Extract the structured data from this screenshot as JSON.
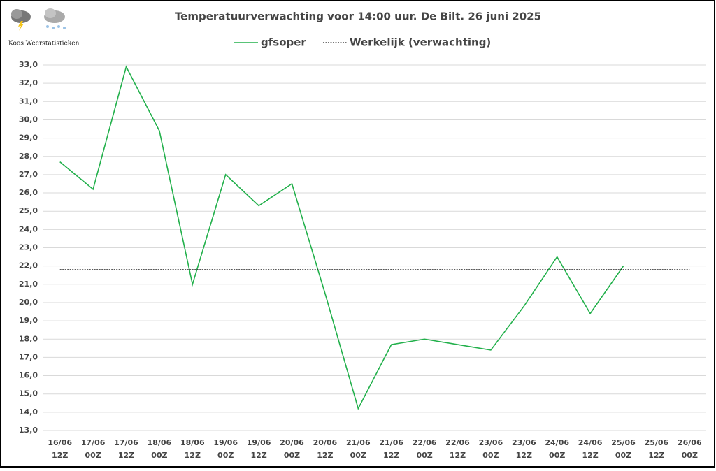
{
  "brand": "Koos Weerstatistieken",
  "chart_data": {
    "type": "line",
    "title": "Temperatuurverwachting voor 14:00 uur. De Bilt. 26 juni 2025",
    "categories": [
      "16/06 12Z",
      "17/06 00Z",
      "17/06 12Z",
      "18/06 00Z",
      "18/06 12Z",
      "19/06 00Z",
      "19/06 12Z",
      "20/06 00Z",
      "20/06 12Z",
      "21/06 00Z",
      "21/06 12Z",
      "22/06 00Z",
      "22/06 12Z",
      "23/06 00Z",
      "23/06 12Z",
      "24/06 00Z",
      "24/06 12Z",
      "25/06 00Z",
      "25/06 12Z",
      "26/06 00Z"
    ],
    "series": [
      {
        "name": "gfsoper",
        "color": "#22b04b",
        "style": "solid",
        "values": [
          27.7,
          26.2,
          32.9,
          29.4,
          21.0,
          27.0,
          25.3,
          26.5,
          20.5,
          14.2,
          17.7,
          18.0,
          17.7,
          17.4,
          19.8,
          22.5,
          19.4,
          22.0,
          null,
          null
        ]
      },
      {
        "name": "Werkelijk (verwachting)",
        "color": "#222222",
        "style": "dotted",
        "values": [
          21.8,
          21.8,
          21.8,
          21.8,
          21.8,
          21.8,
          21.8,
          21.8,
          21.8,
          21.8,
          21.8,
          21.8,
          21.8,
          21.8,
          21.8,
          21.8,
          21.8,
          21.8,
          21.8,
          21.8
        ]
      }
    ],
    "ylim": [
      13,
      33
    ],
    "yticks": [
      {
        "value": 13,
        "label": "13,0"
      },
      {
        "value": 14,
        "label": "14,0"
      },
      {
        "value": 15,
        "label": "15,0"
      },
      {
        "value": 16,
        "label": "16,0"
      },
      {
        "value": 17,
        "label": "17,0"
      },
      {
        "value": 18,
        "label": "18,0"
      },
      {
        "value": 19,
        "label": "19,0"
      },
      {
        "value": 20,
        "label": "20,0"
      },
      {
        "value": 21,
        "label": "21,0"
      },
      {
        "value": 22,
        "label": "22,0"
      },
      {
        "value": 23,
        "label": "23,0"
      },
      {
        "value": 24,
        "label": "24,0"
      },
      {
        "value": 25,
        "label": "25,0"
      },
      {
        "value": 26,
        "label": "26,0"
      },
      {
        "value": 27,
        "label": "27,0"
      },
      {
        "value": 28,
        "label": "28,0"
      },
      {
        "value": 29,
        "label": "29,0"
      },
      {
        "value": 30,
        "label": "30,0"
      },
      {
        "value": 31,
        "label": "31,0"
      },
      {
        "value": 32,
        "label": "32,0"
      },
      {
        "value": 33,
        "label": "33,0"
      }
    ],
    "grid": true
  }
}
